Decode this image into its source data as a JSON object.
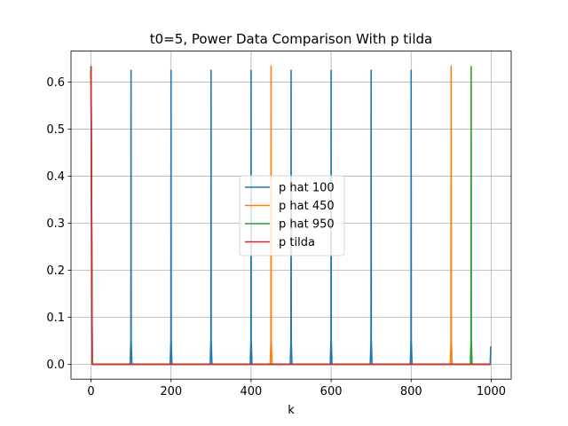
{
  "chart_data": {
    "type": "line",
    "title": "t0=5, Power Data Comparison With p tilda",
    "xlabel": "k",
    "ylabel": "",
    "xlim": [
      -50,
      1050
    ],
    "ylim": [
      -0.0317,
      0.6657
    ],
    "xticks": [
      0,
      200,
      400,
      600,
      800,
      1000
    ],
    "yticks": [
      0.0,
      0.1,
      0.2,
      0.3,
      0.4,
      0.5,
      0.6
    ],
    "xtick_labels": [
      "0",
      "200",
      "400",
      "600",
      "800",
      "1000"
    ],
    "ytick_labels": [
      "0.0",
      "0.1",
      "0.2",
      "0.3",
      "0.4",
      "0.5",
      "0.6"
    ],
    "grid": true,
    "legend_position": "center",
    "series": [
      {
        "name": "p hat 100",
        "color": "#1f77b4",
        "peaks": [
          {
            "x": 100,
            "y": 0.625
          },
          {
            "x": 200,
            "y": 0.625
          },
          {
            "x": 300,
            "y": 0.625
          },
          {
            "x": 400,
            "y": 0.625
          },
          {
            "x": 500,
            "y": 0.625
          },
          {
            "x": 600,
            "y": 0.625
          },
          {
            "x": 700,
            "y": 0.625
          },
          {
            "x": 800,
            "y": 0.625
          },
          {
            "x": 999,
            "y": 0.038
          }
        ],
        "start_y": 0.625,
        "baseline": 0.0
      },
      {
        "name": "p hat 450",
        "color": "#ff7f0e",
        "peaks": [
          {
            "x": 450,
            "y": 0.634
          },
          {
            "x": 900,
            "y": 0.634
          }
        ],
        "start_y": 0.634,
        "baseline": 0.0
      },
      {
        "name": "p hat 950",
        "color": "#2ca02c",
        "peaks": [
          {
            "x": 950,
            "y": 0.633
          }
        ],
        "start_y": 0.633,
        "baseline": 0.0
      },
      {
        "name": "p tilda",
        "color": "#d62728",
        "peaks": [],
        "start_y": 0.634,
        "baseline": 0.0
      }
    ]
  }
}
